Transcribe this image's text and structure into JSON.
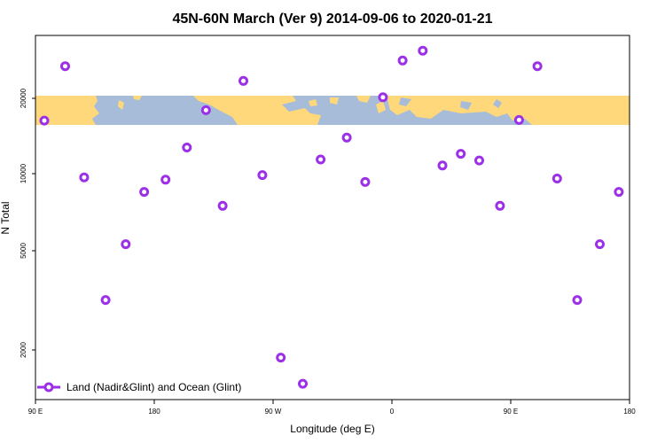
{
  "chart_data": {
    "type": "scatter",
    "title": "45N-60N March (Ver 9)   2014-09-06 to 2020-01-21",
    "xlabel": "Longitude (deg E)",
    "ylabel": "N Total",
    "y_scale": "log",
    "ylim": [
      1300,
      35000
    ],
    "x_ticks": [
      "90 E",
      "180",
      "90 W",
      "0",
      "90 E",
      "180"
    ],
    "y_ticks": [
      2000,
      5000,
      10000,
      20000
    ],
    "y_tick_labels": [
      "2000",
      "5000",
      "10000",
      "20000"
    ],
    "map_band": {
      "ocean_color": "#a7bcd9",
      "land_color": "#fed87a",
      "y_range": [
        16200,
        20500
      ]
    },
    "series": [
      {
        "name": "Land (Nadir&Glint) and Ocean (Glint)",
        "color": "#9b30e8",
        "x": [
          0.015,
          0.05,
          0.082,
          0.118,
          0.152,
          0.183,
          0.219,
          0.255,
          0.287,
          0.315,
          0.35,
          0.382,
          0.413,
          0.45,
          0.48,
          0.524,
          0.555,
          0.585,
          0.618,
          0.652,
          0.685,
          0.716,
          0.747,
          0.782,
          0.814,
          0.845,
          0.878,
          0.912,
          0.95,
          0.982
        ],
        "y": [
          16200,
          26500,
          9700,
          3200,
          5300,
          8500,
          9500,
          12700,
          17800,
          7500,
          23200,
          9900,
          1900,
          1500,
          11400,
          13900,
          9300,
          20000,
          27900,
          30500,
          10800,
          12000,
          11300,
          7500,
          16300,
          26500,
          9600,
          3200,
          5300,
          8500
        ]
      }
    ]
  }
}
